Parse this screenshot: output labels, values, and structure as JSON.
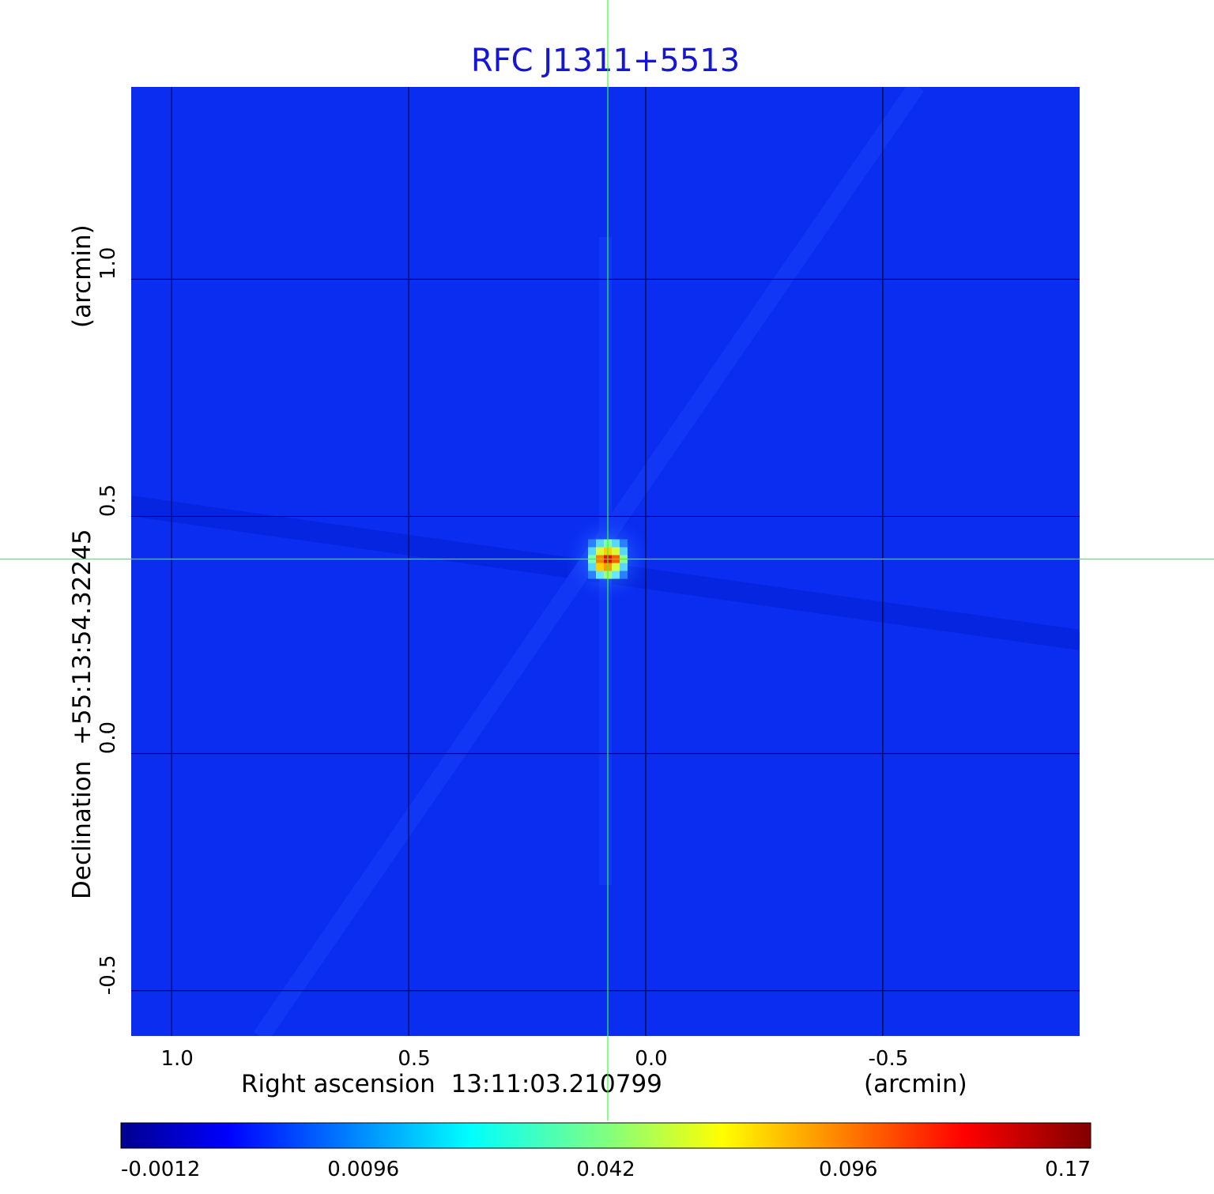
{
  "chart_data": {
    "type": "heatmap",
    "title": "RFC J1311+5513",
    "xlabel": "Right ascension  13:11:03.210799",
    "xunit": "(arcmin)",
    "ylabel": "Declination  +55:13:54.32245",
    "yunit": "(arcmin)",
    "x_ticks": [
      "1.0",
      "0.5",
      "0.0",
      "-0.5"
    ],
    "x_tick_values": [
      1.0,
      0.5,
      0.0,
      -0.5
    ],
    "y_ticks": [
      "1.0",
      "0.5",
      "0.0",
      "-0.5"
    ],
    "y_tick_values": [
      1.0,
      0.5,
      0.0,
      -0.5
    ],
    "xlim": [
      1.087,
      -0.917
    ],
    "ylim": [
      -0.597,
      1.407
    ],
    "grid": true,
    "colormap": "jet",
    "colorbar_ticks": [
      "-0.0012",
      "0.0096",
      "0.042",
      "0.096",
      "0.17"
    ],
    "colorbar_range": [
      -0.0012,
      0.17
    ],
    "peak": {
      "x": 0.08,
      "y": 0.41,
      "value": 0.17
    },
    "crosshair": {
      "x": 0.08,
      "y": 0.41
    },
    "colors": {
      "background_field": "#0a2df0",
      "title": "#1515d4",
      "grid": "#000000",
      "crosshair": "#33ff33"
    }
  }
}
